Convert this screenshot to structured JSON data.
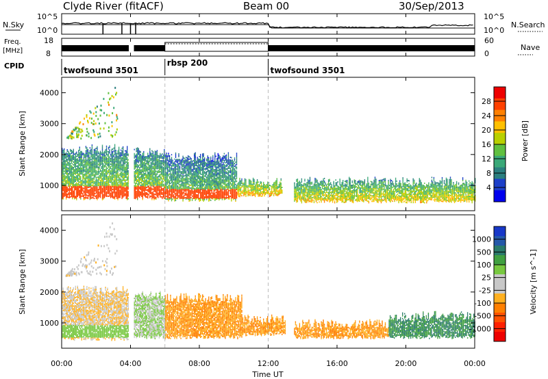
{
  "header": {
    "station": "Clyde River (fitACF)",
    "beam": "Beam 00",
    "date": "30/Sep/2013"
  },
  "strips": {
    "nsky_label": "N.Sky",
    "nsky_ticks": [
      "10^5",
      "10^0"
    ],
    "nsearch_label": "N.Search",
    "nsearch_ticks": [
      "10^5",
      "10^0"
    ],
    "freq_label_1": "Freq.",
    "freq_label_2": "[MHz]",
    "freq_ticks": [
      "18",
      "8"
    ],
    "nave_label": "Nave",
    "nave_ticks": [
      "60",
      "0"
    ],
    "cpid_label": "CPID",
    "cpid_segments": [
      {
        "name": "twofsound 3501",
        "start_h": 0,
        "end_h": 6
      },
      {
        "name": "rbsp 200",
        "start_h": 6,
        "end_h": 12
      },
      {
        "name": "twofsound 3501",
        "start_h": 12,
        "end_h": 24
      }
    ]
  },
  "axes": {
    "xlabel": "Time UT",
    "ylabel": "Slant Range [km]",
    "x_ticks": [
      "00:00",
      "04:00",
      "08:00",
      "12:00",
      "16:00",
      "20:00",
      "00:00"
    ],
    "x_tick_hours": [
      0,
      4,
      8,
      12,
      16,
      20,
      24
    ],
    "y_ticks": [
      1000,
      2000,
      3000,
      4000
    ],
    "xlim_hours": [
      0,
      24
    ],
    "ylim_km": [
      180,
      4500
    ]
  },
  "power_colorbar": {
    "label": "Power [dB]",
    "ticks": [
      "4",
      "8",
      "12",
      "16",
      "20",
      "24",
      "28"
    ],
    "colors": [
      "#0000ee",
      "#1c3fc8",
      "#2b7f7f",
      "#3aa878",
      "#60c040",
      "#b8d000",
      "#ffc000",
      "#ff8000",
      "#ff4000",
      "#ee0000"
    ]
  },
  "velocity_colorbar": {
    "label": "Velocity [m s^-1]",
    "ticks": [
      "1000",
      "500",
      "100",
      "25",
      "-25",
      "-100",
      "-500",
      "-1000"
    ],
    "colors": [
      "#1838c8",
      "#2458a8",
      "#2a7a6a",
      "#40a040",
      "#78c840",
      "#c8c8c8",
      "#c8c8c8",
      "#ffb020",
      "#ff8000",
      "#ff5000",
      "#ff2000",
      "#ee0000"
    ]
  },
  "chart_data": {
    "type": "heatmap",
    "title": "Clyde River (fitACF) Beam 00 30/Sep/2013",
    "xlabel": "Time UT",
    "ylabel": "Slant Range [km]",
    "x_unit": "hours UT",
    "y_unit": "km",
    "xlim": [
      0,
      24
    ],
    "ylim": [
      180,
      4500
    ],
    "panels": [
      {
        "name": "Power",
        "colorbar_label": "Power [dB]",
        "colorbar_range": [
          0,
          32
        ],
        "echo_regions": [
          {
            "t": [
              0.0,
              3.9
            ],
            "range_km": [
              550,
              2150
            ],
            "power_db": 14,
            "core_range_km": [
              550,
              950
            ],
            "core_power_db": 28
          },
          {
            "t": [
              4.2,
              6.0
            ],
            "range_km": [
              550,
              2050
            ],
            "power_db": 14,
            "core_range_km": [
              550,
              950
            ],
            "core_power_db": 28
          },
          {
            "t": [
              6.0,
              10.2
            ],
            "range_km": [
              500,
              1900
            ],
            "power_db": 12,
            "core_range_km": [
              550,
              850
            ],
            "core_power_db": 28
          },
          {
            "t": [
              10.2,
              12.8
            ],
            "range_km": [
              650,
              1100
            ],
            "power_db": 18
          },
          {
            "t": [
              13.5,
              24.0
            ],
            "range_km": [
              450,
              1100
            ],
            "power_db": 16
          }
        ],
        "sparse_regions": [
          {
            "t": [
              0.2,
              3.2
            ],
            "range_km": [
              2500,
              4400
            ],
            "power_db": 16
          }
        ]
      },
      {
        "name": "Velocity",
        "colorbar_label": "Velocity [m s^-1]",
        "colorbar_range": [
          -1000,
          1000
        ],
        "echo_regions": [
          {
            "t": [
              0.0,
              3.9
            ],
            "range_km": [
              450,
              2050
            ],
            "velocity_ms": -25,
            "core_range_km": [
              500,
              900
            ],
            "core_velocity_ms": 100
          },
          {
            "t": [
              4.2,
              6.0
            ],
            "range_km": [
              500,
              1900
            ],
            "velocity_ms": 100
          },
          {
            "t": [
              6.0,
              10.5
            ],
            "range_km": [
              500,
              1800
            ],
            "velocity_ms": -100
          },
          {
            "t": [
              10.5,
              13.0
            ],
            "range_km": [
              600,
              1100
            ],
            "velocity_ms": -100
          },
          {
            "t": [
              13.5,
              19.0
            ],
            "range_km": [
              500,
              950
            ],
            "velocity_ms": -100
          },
          {
            "t": [
              19.0,
              24.0
            ],
            "range_km": [
              500,
              1200
            ],
            "velocity_ms": 500
          }
        ],
        "sparse_regions": [
          {
            "t": [
              0.2,
              3.2
            ],
            "range_km": [
              2500,
              4400
            ],
            "velocity_ms": 0
          }
        ]
      }
    ]
  }
}
